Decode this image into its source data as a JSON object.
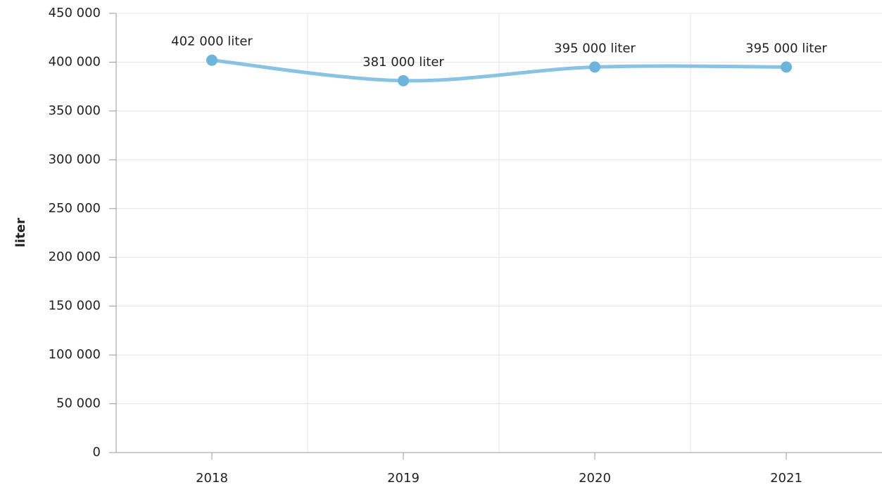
{
  "chart_data": {
    "type": "line",
    "y_label": "liter",
    "categories": [
      "2018",
      "2019",
      "2020",
      "2021"
    ],
    "values": [
      402000,
      381000,
      395000,
      395000
    ],
    "value_labels": [
      "402 000 liter",
      "381 000 liter",
      "395 000 liter",
      "395 000 liter"
    ],
    "color": "#6cb4dc",
    "ylim": [
      0,
      450000
    ],
    "yticks": [
      0,
      {
        "value": 50000,
        "label": "50 000"
      },
      {
        "value": 100000,
        "label": "100 000"
      },
      {
        "value": 150000,
        "label": "150 000"
      },
      {
        "value": 200000,
        "label": "200 000"
      },
      {
        "value": 250000,
        "label": "250 000"
      },
      {
        "value": 300000,
        "label": "300 000"
      },
      {
        "value": 350000,
        "label": "350 000"
      },
      {
        "value": 400000,
        "label": "400 000"
      },
      {
        "value": 450000,
        "label": "450 000"
      }
    ],
    "grid": true
  }
}
